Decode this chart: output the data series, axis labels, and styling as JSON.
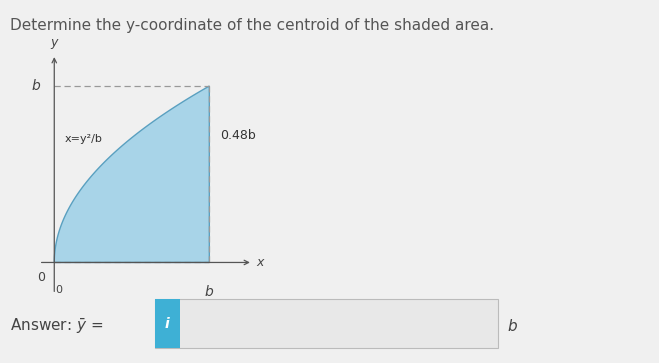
{
  "title": "Determine the y-coordinate of the centroid of the shaded area.",
  "title_fontsize": 11,
  "bg_color": "#f0f0f0",
  "shaded_color": "#a8d4e8",
  "shaded_edge_color": "#5aa0c0",
  "curve_label": "x=y²/b",
  "annotation_048b": "0.48b",
  "axis_label_x": "x",
  "axis_label_y": "y",
  "axis_label_b_x": "b",
  "axis_label_b_y": "b",
  "zero_label": "0",
  "input_box_color": "#3eb0d5",
  "input_box_text": "i",
  "input_box_text_color": "#ffffff",
  "answer_box_color": "#e8e8e8",
  "answer_box_edge": "#bbbbbb"
}
